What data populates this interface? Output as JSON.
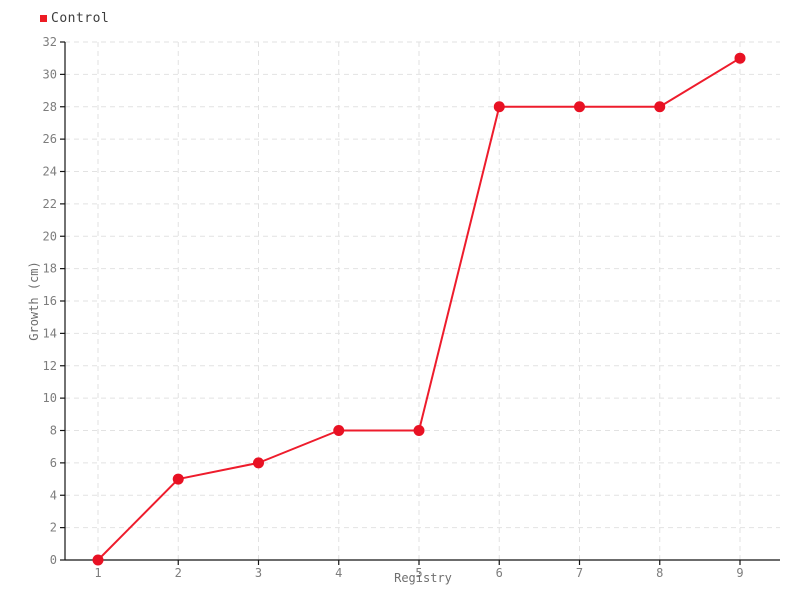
{
  "page": {
    "background": "#ffffff"
  },
  "legend": {
    "items": [
      {
        "label": "Control",
        "color": "#ed1c24"
      }
    ]
  },
  "chart_data": {
    "type": "line",
    "x": [
      1,
      2,
      3,
      4,
      5,
      6,
      7,
      8,
      9
    ],
    "series": [
      {
        "name": "Control",
        "values": [
          0,
          5,
          6,
          8,
          8,
          28,
          28,
          28,
          31
        ],
        "color": "#ee1c2c",
        "marker_color": "#e81123"
      }
    ],
    "title": "",
    "xlabel": "Registry",
    "ylabel": "Growth (cm)",
    "ylim": [
      0,
      32
    ],
    "ytick_step": 2,
    "grid": true,
    "grid_style": "dashed",
    "legend_position": "top-left",
    "colors": {
      "axis": "#141414",
      "grid": "#e2e2e2",
      "tick_label": "#7d7d7d",
      "axis_label": "#6f6f6f"
    }
  }
}
